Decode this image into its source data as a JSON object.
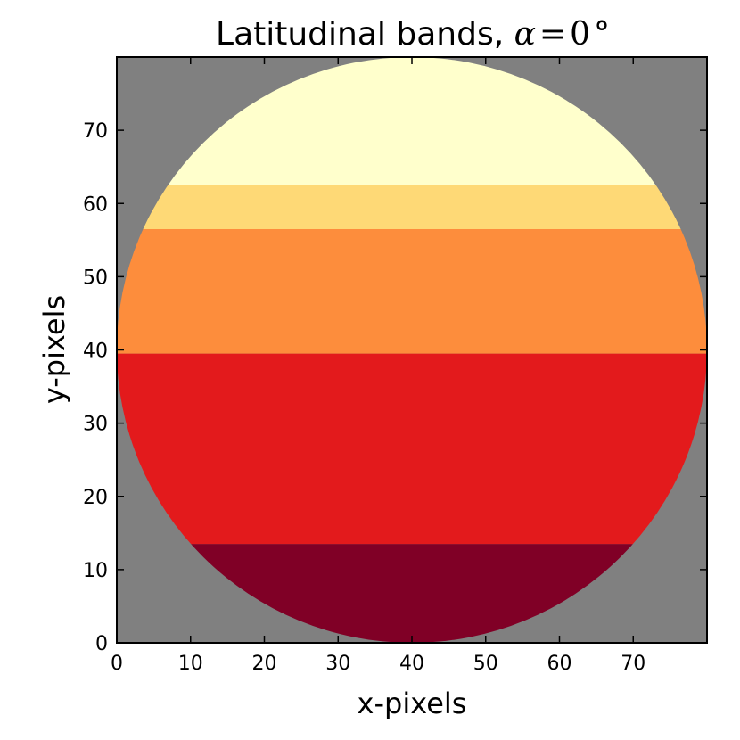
{
  "chart_data": {
    "type": "heatmap",
    "title": {
      "text": "Latitudinal bands, ",
      "math_symbol": "α",
      "math_equals": "=",
      "math_value": "0",
      "math_unit": "°"
    },
    "xlabel": "x-pixels",
    "ylabel": "y-pixels",
    "xlim": [
      0,
      80
    ],
    "ylim": [
      0,
      80
    ],
    "xticks": [
      0,
      10,
      20,
      30,
      40,
      50,
      60,
      70
    ],
    "yticks": [
      0,
      10,
      20,
      30,
      40,
      50,
      60,
      70
    ],
    "grid": false,
    "disk": {
      "center_x": 40,
      "center_y": 40,
      "radius": 40
    },
    "background_color": "#808080",
    "bands": [
      {
        "y_min": 0,
        "y_max": 13.5,
        "color": "#800026"
      },
      {
        "y_min": 13.5,
        "y_max": 39.5,
        "color": "#E31A1C"
      },
      {
        "y_min": 39.5,
        "y_max": 56.5,
        "color": "#FD8D3C"
      },
      {
        "y_min": 56.5,
        "y_max": 62.5,
        "color": "#FED976"
      },
      {
        "y_min": 62.5,
        "y_max": 80,
        "color": "#FFFFCC"
      }
    ]
  }
}
